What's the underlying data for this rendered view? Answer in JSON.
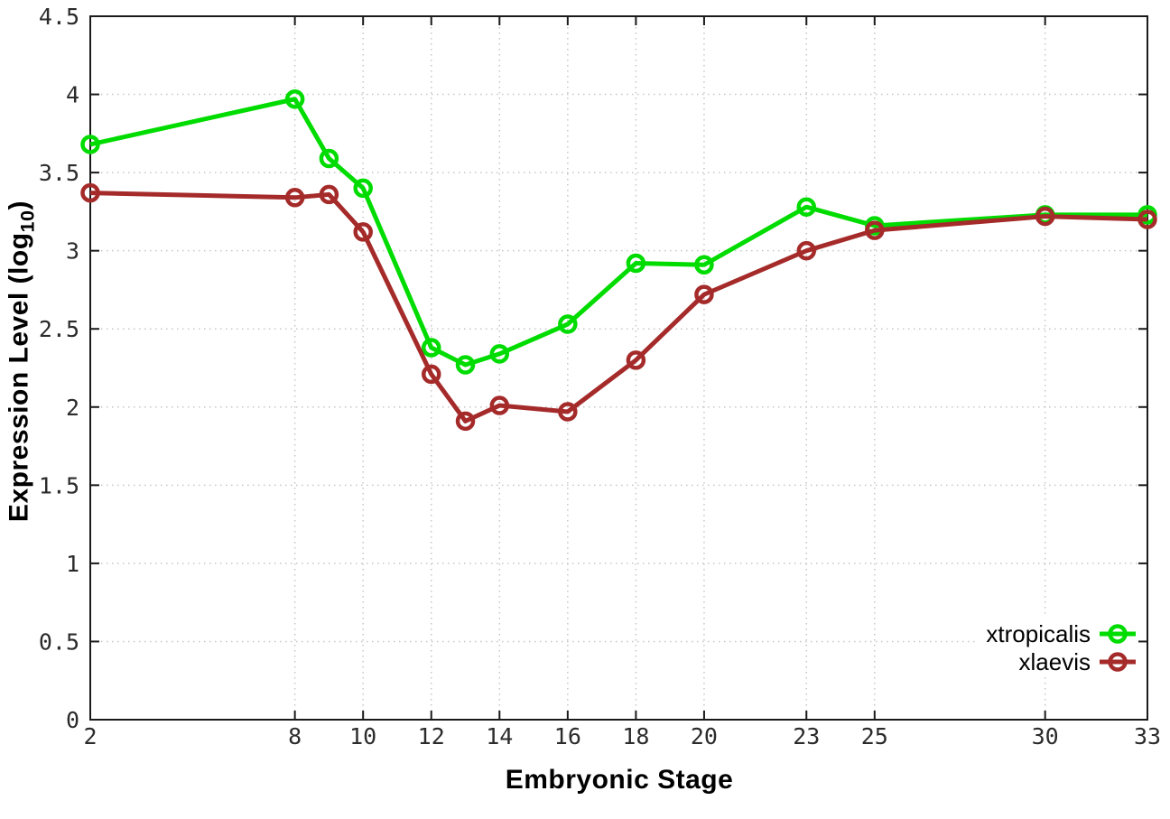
{
  "chart_data": {
    "type": "line",
    "title": "",
    "xlabel": "Embryonic Stage",
    "ylabel_plain": "Expression Level (log10)",
    "ylabel_parts": {
      "prefix": "Expression Level (log",
      "sub": "10",
      "suffix": ")"
    },
    "x": [
      2,
      8,
      9,
      10,
      12,
      13,
      14,
      16,
      18,
      20,
      23,
      25,
      30,
      33
    ],
    "series": [
      {
        "name": "xtropicalis",
        "color": "#00dc00",
        "marker": "open-circle",
        "values": [
          3.68,
          3.97,
          3.59,
          3.4,
          2.38,
          2.27,
          2.34,
          2.53,
          2.92,
          2.91,
          3.28,
          3.16,
          3.23,
          3.23
        ]
      },
      {
        "name": "xlaevis",
        "color": "#a52a2a",
        "marker": "open-circle",
        "values": [
          3.37,
          3.34,
          3.36,
          3.12,
          2.21,
          1.91,
          2.01,
          1.97,
          2.3,
          2.72,
          3.0,
          3.13,
          3.22,
          3.2
        ]
      }
    ],
    "xlim": [
      2,
      33
    ],
    "ylim": [
      0,
      4.5
    ],
    "xticks": {
      "values": [
        2,
        8,
        10,
        12,
        14,
        16,
        18,
        20,
        23,
        25,
        30,
        33
      ],
      "labels": [
        "2",
        "8",
        "10",
        "12",
        "14",
        "16",
        "18",
        "20",
        "23",
        "25",
        "30",
        "33"
      ]
    },
    "yticks": {
      "values": [
        0,
        0.5,
        1,
        1.5,
        2,
        2.5,
        3,
        3.5,
        4,
        4.5
      ],
      "labels": [
        "0",
        "0.5",
        "1",
        "1.5",
        "2",
        "2.5",
        "3",
        "3.5",
        "4",
        "4.5"
      ]
    },
    "grid": true,
    "grid_style": "dotted",
    "legend_position": "bottom-right",
    "legend": [
      "xtropicalis",
      "xlaevis"
    ],
    "colors": {
      "grid": "#c6c6c6",
      "border": "#1a1a1a",
      "tick_text": "#2b2b2b",
      "label_text": "#000000",
      "background": "#ffffff"
    }
  }
}
